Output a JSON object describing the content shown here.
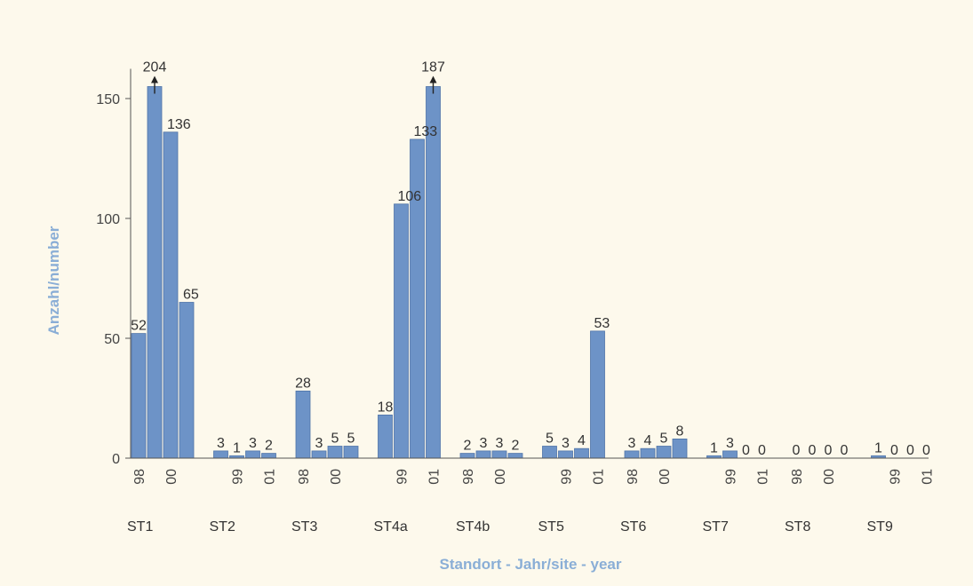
{
  "chart_data": {
    "type": "bar",
    "ylabel": "Anzahl/number",
    "xlabel": "Standort - Jahr/site - year",
    "ylim": [
      0,
      155
    ],
    "yticks": [
      0,
      50,
      100,
      150
    ],
    "grid": false,
    "bar_color": "#6d93c7",
    "axis_title_color": "#8aaed6",
    "background_color": "#fdf9ec",
    "arrow_icon": "up-arrow-icon",
    "sites": [
      {
        "name": "ST1",
        "bars": [
          {
            "year": "98",
            "value": 52,
            "label": "52"
          },
          {
            "year": "99",
            "value": 204,
            "label": "204",
            "clipped": true
          },
          {
            "year": "00",
            "value": 136,
            "label": "136"
          },
          {
            "year": "01",
            "value": 65,
            "label": "65"
          }
        ]
      },
      {
        "name": "ST2",
        "bars": [
          {
            "year": "98",
            "value": 3,
            "label": "3"
          },
          {
            "year": "99",
            "value": 1,
            "label": "1"
          },
          {
            "year": "00",
            "value": 3,
            "label": "3"
          },
          {
            "year": "01",
            "value": 2,
            "label": "2"
          }
        ]
      },
      {
        "name": "ST3",
        "bars": [
          {
            "year": "98",
            "value": 28,
            "label": "28"
          },
          {
            "year": "99",
            "value": 3,
            "label": "3"
          },
          {
            "year": "00",
            "value": 5,
            "label": "5"
          },
          {
            "year": "01",
            "value": 5,
            "label": "5"
          }
        ]
      },
      {
        "name": "ST4a",
        "bars": [
          {
            "year": "98",
            "value": 18,
            "label": "18"
          },
          {
            "year": "99",
            "value": 106,
            "label": "106"
          },
          {
            "year": "00",
            "value": 133,
            "label": "133"
          },
          {
            "year": "01",
            "value": 187,
            "label": "187",
            "clipped": true
          }
        ]
      },
      {
        "name": "ST4b",
        "bars": [
          {
            "year": "98",
            "value": 2,
            "label": "2"
          },
          {
            "year": "99",
            "value": 3,
            "label": "3"
          },
          {
            "year": "00",
            "value": 3,
            "label": "3"
          },
          {
            "year": "01",
            "value": 2,
            "label": "2"
          }
        ]
      },
      {
        "name": "ST5",
        "bars": [
          {
            "year": "98",
            "value": 5,
            "label": "5"
          },
          {
            "year": "99",
            "value": 3,
            "label": "3"
          },
          {
            "year": "00",
            "value": 4,
            "label": "4"
          },
          {
            "year": "01",
            "value": 53,
            "label": "53"
          }
        ]
      },
      {
        "name": "ST6",
        "bars": [
          {
            "year": "98",
            "value": 3,
            "label": "3"
          },
          {
            "year": "99",
            "value": 4,
            "label": "4"
          },
          {
            "year": "00",
            "value": 5,
            "label": "5"
          },
          {
            "year": "01",
            "value": 8,
            "label": "8"
          }
        ]
      },
      {
        "name": "ST7",
        "bars": [
          {
            "year": "98",
            "value": 1,
            "label": "1"
          },
          {
            "year": "99",
            "value": 3,
            "label": "3"
          },
          {
            "year": "00",
            "value": 0,
            "label": "0"
          },
          {
            "year": "01",
            "value": 0,
            "label": "0"
          }
        ]
      },
      {
        "name": "ST8",
        "bars": [
          {
            "year": "98",
            "value": 0,
            "label": "0"
          },
          {
            "year": "99",
            "value": 0,
            "label": "0"
          },
          {
            "year": "00",
            "value": 0,
            "label": "0"
          },
          {
            "year": "01",
            "value": 0,
            "label": "0"
          }
        ]
      },
      {
        "name": "ST9",
        "bars": [
          {
            "year": "98",
            "value": 1,
            "label": "1"
          },
          {
            "year": "99",
            "value": 0,
            "label": "0"
          },
          {
            "year": "00",
            "value": 0,
            "label": "0"
          },
          {
            "year": "01",
            "value": 0,
            "label": "0"
          }
        ]
      }
    ],
    "year_labels_shown": [
      [
        "98",
        "",
        "00",
        ""
      ],
      [
        "",
        "99",
        "",
        "01"
      ],
      [
        "98",
        "",
        "00",
        ""
      ],
      [
        "",
        "99",
        "",
        "01"
      ],
      [
        "98",
        "",
        "00",
        ""
      ],
      [
        "",
        "99",
        "",
        "01"
      ],
      [
        "98",
        "",
        "00",
        ""
      ],
      [
        "",
        "99",
        "",
        "01"
      ],
      [
        "98",
        "",
        "00",
        ""
      ],
      [
        "",
        "99",
        "",
        "01"
      ]
    ]
  }
}
